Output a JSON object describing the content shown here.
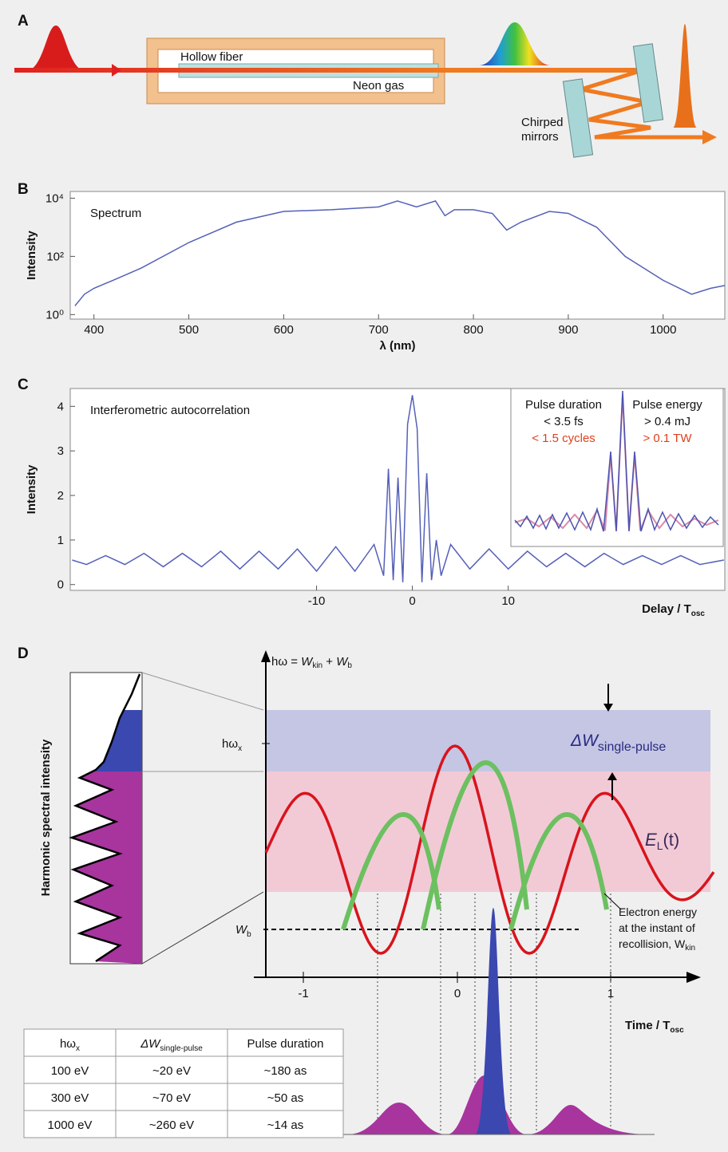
{
  "panel_labels": [
    "A",
    "B",
    "C",
    "D"
  ],
  "panel_a": {
    "fiber_label": "Hollow fiber",
    "gas_label": "Neon gas",
    "mirrors_label": [
      "Chirped",
      "mirrors"
    ]
  },
  "chart_data": [
    {
      "type": "line",
      "annotation": "Spectrum",
      "ylabel": "Intensity",
      "xlabel": "λ (nm)",
      "log_y": true,
      "xlim": [
        375,
        1065
      ],
      "xticks": [
        400,
        500,
        600,
        700,
        800,
        900,
        1000
      ],
      "ylim": [
        0.7,
        17000
      ],
      "yticks": [
        {
          "value": 1,
          "label": "10⁰"
        },
        {
          "value": 100,
          "label": "10²"
        },
        {
          "value": 10000,
          "label": "10⁴"
        }
      ],
      "x": [
        380,
        390,
        400,
        420,
        450,
        500,
        550,
        600,
        650,
        700,
        720,
        740,
        760,
        770,
        780,
        800,
        820,
        835,
        850,
        880,
        900,
        930,
        960,
        1000,
        1030,
        1050,
        1065
      ],
      "series": [
        {
          "color": "#5560b8",
          "values": [
            2,
            5,
            8,
            15,
            40,
            300,
            1500,
            3500,
            4000,
            5000,
            8000,
            5000,
            8000,
            2500,
            4000,
            4000,
            3000,
            800,
            1500,
            3500,
            3000,
            1000,
            100,
            15,
            5,
            8,
            10
          ]
        }
      ]
    },
    {
      "type": "line",
      "annotation": "Interferometric autocorrelation",
      "ylabel": "Intensity",
      "xlabel": "Delay / T",
      "xlabel_sub": "osc",
      "xlim": [
        -35.7,
        32.6
      ],
      "xticks": [
        -10,
        0,
        10
      ],
      "ylim": [
        -0.13,
        4.4
      ],
      "yticks": [
        0,
        1,
        2,
        3,
        4
      ],
      "x": [
        -35.5,
        -34,
        -32,
        -30,
        -28,
        -26,
        -24,
        -22,
        -20,
        -18,
        -16,
        -14,
        -12,
        -10,
        -8,
        -6,
        -4,
        -3,
        -2.5,
        -2,
        -1.5,
        -1,
        -0.5,
        0,
        0.5,
        1,
        1.5,
        2,
        2.5,
        3,
        4,
        6,
        8,
        10,
        12,
        14,
        16,
        18,
        20,
        22,
        24,
        26,
        28,
        30,
        32.5
      ],
      "series": [
        {
          "color": "#5560b8",
          "values": [
            0.55,
            0.45,
            0.65,
            0.45,
            0.7,
            0.4,
            0.7,
            0.4,
            0.75,
            0.35,
            0.75,
            0.35,
            0.8,
            0.3,
            0.85,
            0.3,
            0.9,
            0.2,
            2.6,
            0.1,
            2.4,
            0.05,
            3.6,
            4.25,
            3.5,
            0.05,
            2.5,
            0.1,
            1.0,
            0.2,
            0.9,
            0.35,
            0.8,
            0.35,
            0.75,
            0.4,
            0.7,
            0.4,
            0.7,
            0.45,
            0.65,
            0.45,
            0.65,
            0.45,
            0.55
          ]
        }
      ],
      "inset": {
        "duration_title": "Pulse duration",
        "duration_value": "< 3.5 fs",
        "duration_cycles": "< 1.5 cycles",
        "energy_title": "Pulse energy",
        "energy_value": "> 0.4 mJ",
        "energy_power": "> 0.1 TW"
      }
    }
  ],
  "panel_d": {
    "energy_axis": {
      "a": "hω = ",
      "w1": "W",
      "w1_sub": "kin",
      "plus": " + ",
      "w2": "W",
      "w2_sub": "b"
    },
    "hw_x": {
      "main": "hω",
      "sub": "x"
    },
    "delta_w": {
      "main": "ΔW",
      "sub": "single-pulse"
    },
    "field_label": {
      "main": "E",
      "sub": "L",
      "tail": "(t)"
    },
    "wb_label": {
      "main": "W",
      "sub": "b"
    },
    "electron_note": [
      "Electron energy",
      "at the instant of",
      "recollision, W"
    ],
    "electron_note_sub": "kin",
    "ylabel": "Harmonic spectral intensity",
    "xlabel": {
      "main": "Time / T",
      "sub": "osc"
    },
    "xticks": [
      "-1",
      "0",
      "1"
    ],
    "table": {
      "header": [
        {
          "main": "hω",
          "sub": "x"
        },
        {
          "main": "ΔW",
          "sub": "single-pulse"
        },
        "Pulse duration"
      ],
      "rows": [
        [
          "100 eV",
          "~20 eV",
          "~180 as"
        ],
        [
          "300 eV",
          "~70 eV",
          "~50 as"
        ],
        [
          "1000 eV",
          "~260 eV",
          "~14 as"
        ]
      ]
    }
  }
}
